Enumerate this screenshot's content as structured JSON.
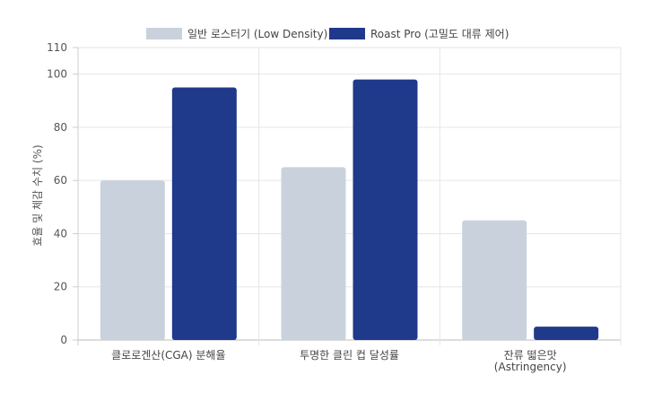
{
  "chart_data": {
    "type": "bar",
    "title": "",
    "xlabel": "",
    "ylabel": "효율 및 체감 수치 (%)",
    "ylim": [
      0,
      110
    ],
    "yticks": [
      0,
      20,
      40,
      60,
      80,
      100,
      110
    ],
    "grid": true,
    "legend_position": "top-center",
    "categories": [
      [
        "클로로겐산(CGA) 분해율"
      ],
      [
        "투명한 클린 컵 달성률"
      ],
      [
        "잔류 떫은맛",
        "(Astringency)"
      ]
    ],
    "series": [
      {
        "name": "일반 로스터기 (Low Density)",
        "color": "#c9d2dc",
        "values": [
          60,
          65,
          45
        ]
      },
      {
        "name": "Roast Pro (고밀도 대류 제어)",
        "color": "#1f3a8a",
        "values": [
          95,
          98,
          5
        ]
      }
    ]
  }
}
